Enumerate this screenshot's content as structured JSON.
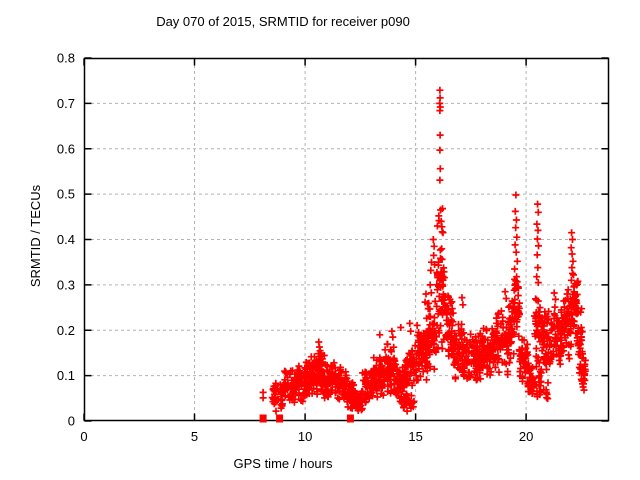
{
  "window": {
    "background": "#ffffff"
  },
  "chart_data": {
    "type": "scatter",
    "title": "Day 070 of 2015, SRMTID for receiver p090",
    "xlabel": "GPS time / hours",
    "ylabel": "SRMTID / TECUs",
    "xlim": [
      0,
      23.75
    ],
    "ylim": [
      0,
      0.8
    ],
    "x_ticks": {
      "values": [
        0,
        5,
        10,
        15,
        20
      ],
      "labels": [
        "0",
        "5",
        "10",
        "15",
        "20"
      ]
    },
    "y_ticks": {
      "values": [
        0,
        0.1,
        0.2,
        0.3,
        0.4,
        0.5,
        0.6,
        0.7,
        0.8
      ],
      "labels": [
        "0",
        "0.1",
        "0.2",
        "0.3",
        "0.4",
        "0.5",
        "0.6",
        "0.7",
        "0.8"
      ]
    },
    "grid": true,
    "legend_position": "none",
    "marker": {
      "shape": "plus",
      "color": "#ff0000",
      "size": 7
    },
    "colors": {
      "marker": "#ff0000",
      "grid": "#b3b3b3",
      "axis": "#000000",
      "background": "#ffffff"
    },
    "series_name": "SRMTID",
    "zero_marker_times": [
      8.1,
      8.85,
      12.05
    ],
    "outlier_points": [
      [
        8.1,
        0.051
      ],
      [
        8.1,
        0.063
      ],
      [
        10.62,
        0.174
      ],
      [
        10.65,
        0.163
      ],
      [
        10.68,
        0.155
      ],
      [
        13.38,
        0.19
      ],
      [
        13.93,
        0.198
      ],
      [
        13.97,
        0.185
      ],
      [
        14.33,
        0.206
      ],
      [
        14.74,
        0.215
      ],
      [
        14.78,
        0.198
      ],
      [
        15.43,
        0.262
      ],
      [
        15.47,
        0.28
      ],
      [
        15.66,
        0.3
      ],
      [
        15.69,
        0.332
      ],
      [
        15.72,
        0.35
      ],
      [
        15.8,
        0.4
      ],
      [
        15.82,
        0.365
      ],
      [
        15.84,
        0.385
      ],
      [
        15.86,
        0.345
      ],
      [
        16.1,
        0.729
      ],
      [
        16.11,
        0.712
      ],
      [
        16.09,
        0.7
      ],
      [
        16.12,
        0.692
      ],
      [
        16.1,
        0.684
      ],
      [
        16.11,
        0.63
      ],
      [
        16.1,
        0.597
      ],
      [
        16.12,
        0.556
      ],
      [
        16.1,
        0.531
      ],
      [
        16.13,
        0.465
      ],
      [
        16.05,
        0.452
      ],
      [
        16.16,
        0.44
      ],
      [
        16.19,
        0.428
      ],
      [
        16.22,
        0.468
      ],
      [
        16.24,
        0.415
      ],
      [
        17.1,
        0.272
      ],
      [
        17.14,
        0.256
      ],
      [
        19.05,
        0.285
      ],
      [
        19.1,
        0.27
      ],
      [
        19.54,
        0.498
      ],
      [
        19.51,
        0.462
      ],
      [
        19.56,
        0.443
      ],
      [
        19.53,
        0.426
      ],
      [
        19.58,
        0.405
      ],
      [
        19.5,
        0.388
      ],
      [
        19.55,
        0.372
      ],
      [
        19.6,
        0.352
      ],
      [
        19.48,
        0.335
      ],
      [
        19.57,
        0.318
      ],
      [
        19.52,
        0.302
      ],
      [
        20.52,
        0.478
      ],
      [
        20.55,
        0.46
      ],
      [
        20.49,
        0.434
      ],
      [
        20.54,
        0.42
      ],
      [
        20.51,
        0.401
      ],
      [
        20.56,
        0.386
      ],
      [
        20.5,
        0.366
      ],
      [
        20.53,
        0.338
      ],
      [
        20.48,
        0.318
      ],
      [
        20.55,
        0.305
      ],
      [
        21.27,
        0.282
      ],
      [
        21.33,
        0.268
      ],
      [
        22.06,
        0.415
      ],
      [
        22.1,
        0.4
      ],
      [
        22.04,
        0.382
      ],
      [
        22.08,
        0.368
      ],
      [
        22.12,
        0.352
      ],
      [
        22.07,
        0.338
      ],
      [
        22.1,
        0.325
      ],
      [
        22.05,
        0.31
      ],
      [
        22.5,
        0.092
      ],
      [
        22.55,
        0.082
      ],
      [
        22.58,
        0.075
      ],
      [
        22.62,
        0.068
      ],
      [
        22.55,
        0.118
      ],
      [
        22.6,
        0.105
      ]
    ],
    "dense_bands": [
      [
        8.5,
        9.0,
        0.02,
        0.09,
        40
      ],
      [
        9.0,
        9.6,
        0.03,
        0.125,
        60
      ],
      [
        9.6,
        10.1,
        0.04,
        0.135,
        60
      ],
      [
        10.1,
        10.5,
        0.05,
        0.15,
        55
      ],
      [
        10.5,
        10.9,
        0.05,
        0.165,
        55
      ],
      [
        10.9,
        11.4,
        0.04,
        0.135,
        60
      ],
      [
        11.4,
        11.9,
        0.04,
        0.12,
        60
      ],
      [
        11.9,
        12.3,
        0.025,
        0.095,
        50
      ],
      [
        12.3,
        12.6,
        0.018,
        0.07,
        40
      ],
      [
        12.6,
        13.1,
        0.035,
        0.12,
        55
      ],
      [
        13.1,
        13.6,
        0.045,
        0.155,
        60
      ],
      [
        13.6,
        14.05,
        0.05,
        0.185,
        60
      ],
      [
        14.05,
        14.5,
        0.03,
        0.14,
        50
      ],
      [
        14.4,
        14.95,
        0.018,
        0.06,
        22
      ],
      [
        14.5,
        15.05,
        0.05,
        0.185,
        55
      ],
      [
        15.05,
        15.55,
        0.08,
        0.22,
        60
      ],
      [
        15.5,
        15.95,
        0.1,
        0.29,
        55
      ],
      [
        15.95,
        16.35,
        0.14,
        0.45,
        60
      ],
      [
        16.35,
        16.7,
        0.12,
        0.3,
        45
      ],
      [
        16.7,
        17.25,
        0.08,
        0.23,
        60
      ],
      [
        17.25,
        18.0,
        0.08,
        0.2,
        80
      ],
      [
        18.0,
        18.6,
        0.09,
        0.21,
        70
      ],
      [
        18.6,
        19.2,
        0.1,
        0.26,
        65
      ],
      [
        19.2,
        19.45,
        0.12,
        0.28,
        30
      ],
      [
        19.45,
        19.7,
        0.15,
        0.33,
        35
      ],
      [
        19.7,
        20.1,
        0.07,
        0.2,
        45
      ],
      [
        20.05,
        20.35,
        0.05,
        0.13,
        28
      ],
      [
        20.35,
        20.7,
        0.1,
        0.3,
        40
      ],
      [
        20.45,
        21.0,
        0.04,
        0.11,
        22
      ],
      [
        20.7,
        21.2,
        0.1,
        0.25,
        55
      ],
      [
        21.2,
        21.7,
        0.12,
        0.27,
        55
      ],
      [
        21.7,
        22.05,
        0.13,
        0.3,
        50
      ],
      [
        22.0,
        22.35,
        0.18,
        0.33,
        45
      ],
      [
        22.3,
        22.55,
        0.1,
        0.27,
        32
      ],
      [
        22.45,
        22.7,
        0.07,
        0.15,
        18
      ]
    ]
  }
}
